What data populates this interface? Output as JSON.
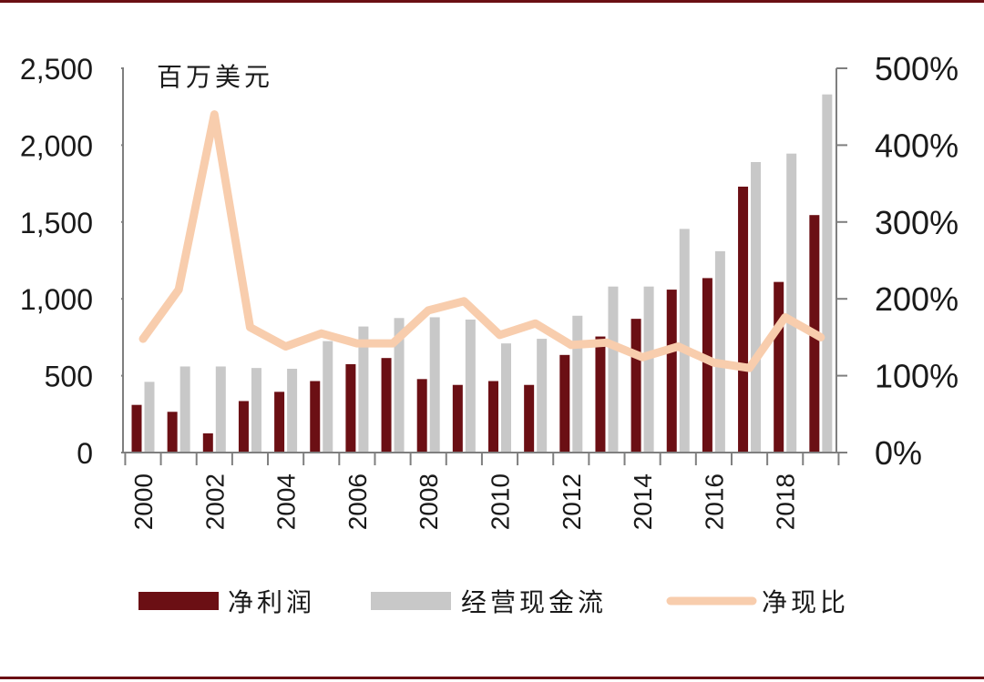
{
  "chart_data": {
    "type": "bar",
    "unit_label": "百万美元",
    "categories": [
      "2000",
      "2001",
      "2002",
      "2003",
      "2004",
      "2005",
      "2006",
      "2007",
      "2008",
      "2009",
      "2010",
      "2011",
      "2012",
      "2013",
      "2014",
      "2015",
      "2016",
      "2017",
      "2018",
      "2019"
    ],
    "x_tick_labels": [
      "2000",
      "2002",
      "2004",
      "2006",
      "2008",
      "2010",
      "2012",
      "2014",
      "2016",
      "2018"
    ],
    "series": [
      {
        "name": "净利润",
        "type": "bar",
        "axis": "left",
        "color": "#6b0f14",
        "values": [
          310,
          265,
          125,
          335,
          395,
          465,
          575,
          615,
          478,
          440,
          465,
          440,
          635,
          755,
          870,
          1060,
          1135,
          1730,
          1110,
          1545
        ]
      },
      {
        "name": "经营现金流",
        "type": "bar",
        "axis": "left",
        "color": "#c8c8c8",
        "values": [
          460,
          560,
          560,
          550,
          545,
          725,
          820,
          875,
          880,
          865,
          710,
          740,
          890,
          1080,
          1080,
          1455,
          1310,
          1890,
          1945,
          2330
        ]
      },
      {
        "name": "净现比",
        "type": "line",
        "axis": "right",
        "unit": "%",
        "color": "#f8cdad",
        "values": [
          148,
          212,
          440,
          163,
          138,
          155,
          142,
          142,
          185,
          197,
          153,
          168,
          140,
          143,
          124,
          138,
          117,
          110,
          176,
          150
        ]
      }
    ],
    "y_left": {
      "min": 0,
      "max": 2500,
      "ticks": [
        0,
        500,
        1000,
        1500,
        2000,
        2500
      ],
      "tick_labels": [
        "0",
        "500",
        "1,000",
        "1,500",
        "2,000",
        "2,500"
      ]
    },
    "y_right": {
      "min": 0,
      "max": 500,
      "ticks": [
        0,
        100,
        200,
        300,
        400,
        500
      ],
      "tick_labels": [
        "0%",
        "100%",
        "200%",
        "300%",
        "400%",
        "500%"
      ]
    },
    "legend": {
      "position": "bottom",
      "items": [
        "净利润",
        "经营现金流",
        "净现比"
      ]
    },
    "grid": false
  }
}
